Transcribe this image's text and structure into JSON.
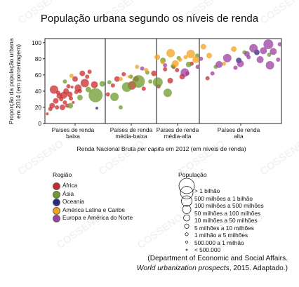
{
  "title": "População urbana segundo os níveis de renda",
  "chart_data": {
    "type": "scatter",
    "title": "População urbana segundo os níveis de renda",
    "ylabel_lines": [
      "Proporção da população urbana",
      "em 2014 (em porcentagem)"
    ],
    "xlabel_parts": [
      "Renda Nacional Bruta ",
      "per capita",
      " em 2012 (em níveis de renda)"
    ],
    "ylim": [
      0,
      105
    ],
    "yticks": [
      0,
      20,
      40,
      60,
      80,
      100
    ],
    "categories": [
      {
        "line1": "Países de renda",
        "line2": "baixa"
      },
      {
        "line1": "Países de renda",
        "line2": "média-baixa"
      },
      {
        "line1": "Países de renda",
        "line2": "média-alta"
      },
      {
        "line1": "Países de renda",
        "line2": "alta"
      }
    ],
    "series": [
      {
        "name": "África",
        "color": "#c9292c",
        "points": [
          [
            0.04,
            12,
            2
          ],
          [
            0.09,
            18,
            3
          ],
          [
            0.12,
            22,
            4
          ],
          [
            0.15,
            42,
            6
          ],
          [
            0.18,
            28,
            4
          ],
          [
            0.2,
            20,
            3
          ],
          [
            0.22,
            38,
            3
          ],
          [
            0.24,
            34,
            4
          ],
          [
            0.27,
            30,
            3
          ],
          [
            0.29,
            20,
            4
          ],
          [
            0.31,
            35,
            5
          ],
          [
            0.33,
            26,
            3
          ],
          [
            0.35,
            40,
            4
          ],
          [
            0.37,
            22,
            3
          ],
          [
            0.39,
            46,
            3
          ],
          [
            0.41,
            36,
            4
          ],
          [
            0.43,
            31,
            3
          ],
          [
            0.45,
            45,
            2
          ],
          [
            0.47,
            26,
            2
          ],
          [
            0.5,
            55,
            4
          ],
          [
            0.52,
            39,
            3
          ],
          [
            0.55,
            44,
            5
          ],
          [
            0.58,
            40,
            3
          ],
          [
            0.62,
            62,
            4
          ],
          [
            0.66,
            50,
            6
          ],
          [
            0.7,
            58,
            3
          ],
          [
            0.74,
            64,
            3
          ],
          [
            0.82,
            48,
            5
          ],
          [
            1.05,
            36,
            3
          ],
          [
            1.15,
            47,
            3
          ],
          [
            1.23,
            55,
            4
          ],
          [
            1.36,
            61,
            3
          ],
          [
            1.52,
            47,
            6
          ],
          [
            1.6,
            55,
            4
          ],
          [
            1.75,
            43,
            3
          ],
          [
            1.95,
            62,
            4
          ],
          [
            2.05,
            46,
            3
          ],
          [
            2.2,
            67,
            3
          ],
          [
            2.32,
            53,
            4
          ],
          [
            2.4,
            70,
            3
          ],
          [
            2.48,
            66,
            3
          ],
          [
            2.6,
            58,
            4
          ],
          [
            2.72,
            62,
            3
          ],
          [
            2.82,
            74,
            3
          ],
          [
            3.1,
            56,
            3
          ]
        ]
      },
      {
        "name": "Ásia",
        "color": "#6d9b2e",
        "points": [
          [
            0.33,
            52,
            3
          ],
          [
            0.42,
            22,
            4
          ],
          [
            0.58,
            32,
            4
          ],
          [
            0.72,
            42,
            4
          ],
          [
            0.84,
            35,
            10
          ],
          [
            0.95,
            49,
            4
          ],
          [
            1.08,
            51,
            3
          ],
          [
            1.18,
            33,
            6
          ],
          [
            1.3,
            20,
            3
          ],
          [
            1.42,
            45,
            7
          ],
          [
            1.5,
            58,
            3
          ],
          [
            1.65,
            52,
            9
          ],
          [
            1.82,
            63,
            3
          ],
          [
            1.88,
            52,
            3
          ],
          [
            2.03,
            51,
            7
          ],
          [
            2.15,
            78,
            4
          ],
          [
            2.26,
            38,
            6
          ],
          [
            2.38,
            71,
            3
          ],
          [
            2.52,
            81,
            3
          ],
          [
            2.75,
            73,
            4
          ],
          [
            2.95,
            84,
            3
          ],
          [
            3.2,
            70,
            3
          ],
          [
            3.55,
            88,
            3
          ],
          [
            3.85,
            85,
            3
          ]
        ]
      },
      {
        "name": "Oceania",
        "color": "#2e2a78",
        "points": [
          [
            0.86,
            19,
            2
          ],
          [
            3.48,
            78,
            4
          ],
          [
            3.7,
            88,
            4
          ]
        ]
      },
      {
        "name": "América Latina e Caribe",
        "color": "#f4a11c",
        "points": [
          [
            0.44,
            59,
            3
          ],
          [
            1.3,
            55,
            3
          ],
          [
            1.46,
            58,
            2
          ],
          [
            1.62,
            70,
            3
          ],
          [
            1.8,
            66,
            3
          ],
          [
            2.02,
            82,
            4
          ],
          [
            2.14,
            76,
            3
          ],
          [
            2.33,
            87,
            6
          ],
          [
            2.44,
            74,
            5
          ],
          [
            2.55,
            79,
            3
          ],
          [
            2.68,
            82,
            3
          ],
          [
            2.8,
            86,
            6
          ],
          [
            2.92,
            79,
            5
          ],
          [
            3.05,
            95,
            4
          ],
          [
            3.12,
            84,
            4
          ],
          [
            3.3,
            74,
            3
          ],
          [
            3.42,
            92,
            4
          ]
        ]
      },
      {
        "name": "Europa e América do Norte",
        "color": "#9b3fa0",
        "points": [
          [
            1.72,
            68,
            3
          ],
          [
            2.2,
            72,
            3
          ],
          [
            2.66,
            63,
            6
          ],
          [
            3.02,
            80,
            3
          ],
          [
            3.16,
            62,
            3
          ],
          [
            3.24,
            73,
            5
          ],
          [
            3.34,
            81,
            6
          ],
          [
            3.44,
            69,
            3
          ],
          [
            3.5,
            74,
            5
          ],
          [
            3.58,
            86,
            4
          ],
          [
            3.6,
            82,
            3
          ],
          [
            3.66,
            93,
            6
          ],
          [
            3.74,
            79,
            5
          ],
          [
            3.78,
            90,
            5
          ],
          [
            3.84,
            98,
            7
          ],
          [
            3.86,
            72,
            6
          ],
          [
            3.9,
            89,
            5
          ],
          [
            3.96,
            79,
            3
          ],
          [
            3.98,
            98,
            3
          ],
          [
            2.96,
            70,
            3
          ]
        ]
      }
    ]
  },
  "legend": {
    "region_title": "Região",
    "regions": [
      {
        "label": "África",
        "color": "#c9292c"
      },
      {
        "label": "Ásia",
        "color": "#6d9b2e"
      },
      {
        "label": "Oceania",
        "color": "#2e2a78"
      },
      {
        "label": "América Latina e Caribe",
        "color": "#f4a11c"
      },
      {
        "label": "Europa e América do Norte",
        "color": "#9b3fa0"
      }
    ],
    "size_title": "População",
    "sizes": [
      "> 1 bilhão",
      "500 milhões a 1 bilhão",
      "100 milhões a 500 milhões",
      "50 milhões a 100 milhões",
      "10 milhões a 50 milhões",
      "5 milhões a 10 milhões",
      "1 milhão a 5 milhões",
      "500.000 a 1 milhão",
      "< 500.000"
    ]
  },
  "source": {
    "line1": "(Department of Economic and Social Affairs.",
    "line2_italic": "World urbanization prospects",
    "line2_rest": ", 2015. Adaptado.)"
  },
  "watermark": "COSSENO"
}
